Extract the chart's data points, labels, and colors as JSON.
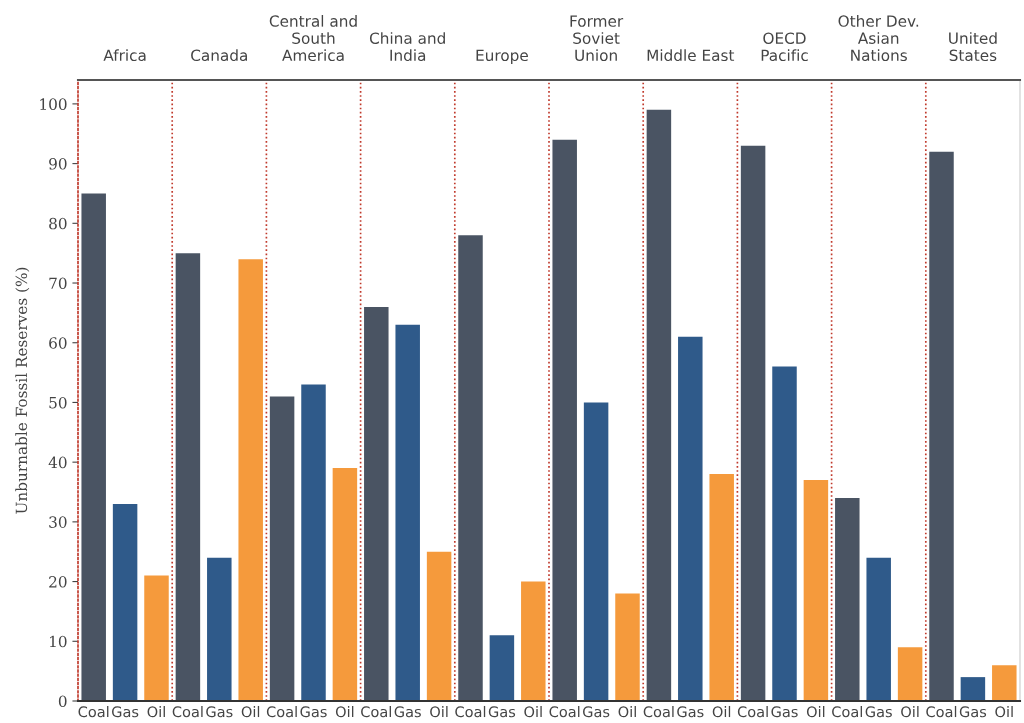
{
  "chart_data": {
    "type": "bar",
    "ylabel": "Unburnable Fossil Reserves (%)",
    "categories": [
      "Africa",
      "Canada",
      "Central and\nSouth\nAmerica",
      "China and\nIndia",
      "Europe",
      "Former\nSoviet\nUnion",
      "Middle East",
      "OECD\nPacific",
      "Other Dev.\nAsian\nNations",
      "United\nStates"
    ],
    "series": [
      {
        "name": "Coal",
        "color": "#4a5463",
        "values": [
          85,
          75,
          51,
          66,
          78,
          94,
          99,
          93,
          34,
          92
        ]
      },
      {
        "name": "Gas",
        "color": "#2f5a8a",
        "values": [
          33,
          24,
          53,
          63,
          11,
          50,
          61,
          56,
          24,
          4
        ]
      },
      {
        "name": "Oil",
        "color": "#f59a3c",
        "values": [
          21,
          74,
          39,
          25,
          20,
          18,
          38,
          37,
          9,
          6
        ]
      }
    ],
    "ylim": [
      0,
      104
    ],
    "yticks": [
      0,
      10,
      20,
      30,
      40,
      50,
      60,
      70,
      80,
      90,
      100
    ],
    "grid": "x"
  }
}
